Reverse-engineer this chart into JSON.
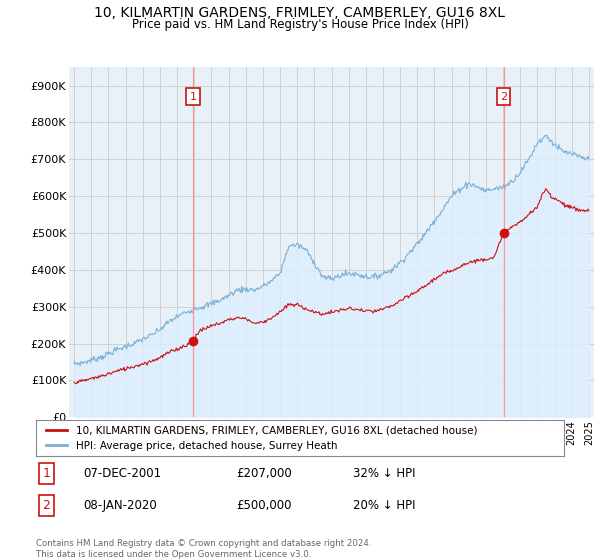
{
  "title": "10, KILMARTIN GARDENS, FRIMLEY, CAMBERLEY, GU16 8XL",
  "subtitle": "Price paid vs. HM Land Registry's House Price Index (HPI)",
  "xlim_start": 1994.7,
  "xlim_end": 2025.3,
  "ylim": [
    0,
    950000
  ],
  "yticks": [
    0,
    100000,
    200000,
    300000,
    400000,
    500000,
    600000,
    700000,
    800000,
    900000
  ],
  "ytick_labels": [
    "£0",
    "£100K",
    "£200K",
    "£300K",
    "£400K",
    "£500K",
    "£600K",
    "£700K",
    "£800K",
    "£900K"
  ],
  "sale1_date": 2001.92,
  "sale1_price": 207000,
  "sale1_label": "1",
  "sale2_date": 2020.03,
  "sale2_price": 500000,
  "sale2_label": "2",
  "hpi_color": "#7ab0d4",
  "hpi_fill_color": "#ddeeff",
  "price_color": "#cc1111",
  "vline_color": "#ff8888",
  "marker_box_color": "#cc1111",
  "legend_label_price": "10, KILMARTIN GARDENS, FRIMLEY, CAMBERLEY, GU16 8XL (detached house)",
  "legend_label_hpi": "HPI: Average price, detached house, Surrey Heath",
  "table_row1": [
    "1",
    "07-DEC-2001",
    "£207,000",
    "32% ↓ HPI"
  ],
  "table_row2": [
    "2",
    "08-JAN-2020",
    "£500,000",
    "20% ↓ HPI"
  ],
  "footnote": "Contains HM Land Registry data © Crown copyright and database right 2024.\nThis data is licensed under the Open Government Licence v3.0.",
  "background_color": "#ffffff",
  "chart_bg_color": "#e8f0f8",
  "grid_color": "#cccccc"
}
